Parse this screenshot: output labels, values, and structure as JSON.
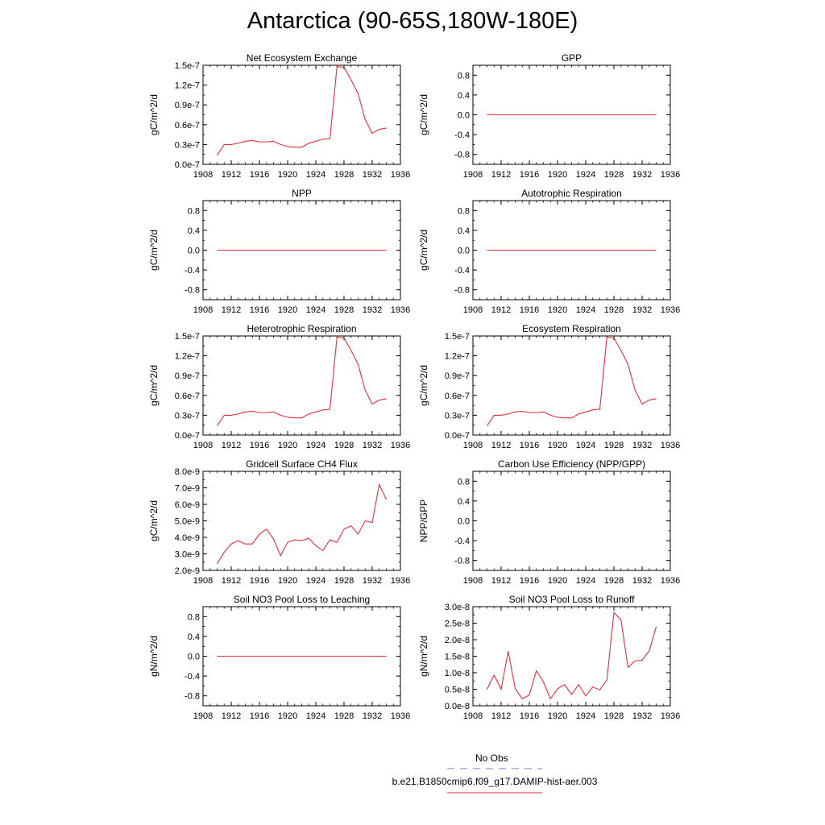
{
  "title": "Antarctica (90-65S,180W-180E)",
  "legend": {
    "obs_label": "No Obs",
    "obs_color": "#7b7bd6",
    "model_label": "b.e21.B1850cmip6.f09_g17.DAMIP-hist-aer.003",
    "model_color": "#e0303a"
  },
  "chart_data": [
    {
      "type": "line",
      "title": "Net Ecosystem Exchange",
      "ylabel": "gC/m^2/d",
      "xlim": [
        1908,
        1936
      ],
      "xticks": [
        1908,
        1912,
        1916,
        1920,
        1924,
        1928,
        1932,
        1936
      ],
      "ylim": [
        0.0,
        1.5e-07
      ],
      "yticks": [
        0.0,
        3e-08,
        6e-08,
        9e-08,
        1.2e-07,
        1.5e-07
      ],
      "ytick_labels": [
        "0.0e-7",
        "0.3e-7",
        "0.6e-7",
        "0.9e-7",
        "1.2e-7",
        "1.5e-7"
      ],
      "series": [
        {
          "x": [
            1910,
            1911,
            1912,
            1913,
            1914,
            1915,
            1916,
            1917,
            1918,
            1919,
            1920,
            1921,
            1922,
            1923,
            1924,
            1925,
            1926,
            1927,
            1928,
            1929,
            1930,
            1931,
            1932,
            1933,
            1934
          ],
          "y": [
            1.4e-08,
            3e-08,
            3e-08,
            3.2e-08,
            3.5e-08,
            3.6e-08,
            3.4e-08,
            3.4e-08,
            3.5e-08,
            3e-08,
            2.7e-08,
            2.6e-08,
            2.6e-08,
            3.2e-08,
            3.5e-08,
            3.8e-08,
            3.9e-08,
            1.48e-07,
            1.47e-07,
            1.28e-07,
            1.07e-07,
            6.8e-08,
            4.7e-08,
            5.3e-08,
            5.5e-08
          ]
        }
      ]
    },
    {
      "type": "line",
      "title": "GPP",
      "ylabel": "gC/m^2/d",
      "xlim": [
        1908,
        1936
      ],
      "xticks": [
        1908,
        1912,
        1916,
        1920,
        1924,
        1928,
        1932,
        1936
      ],
      "ylim": [
        -1.0,
        1.0
      ],
      "yticks": [
        -0.8,
        -0.4,
        0.0,
        0.4,
        0.8
      ],
      "ytick_labels": [
        "-0.8",
        "-0.4",
        "0.0",
        "0.4",
        "0.8"
      ],
      "series": [
        {
          "x": [
            1910,
            1934
          ],
          "y": [
            0,
            0
          ]
        }
      ]
    },
    {
      "type": "line",
      "title": "NPP",
      "ylabel": "gC/m^2/d",
      "xlim": [
        1908,
        1936
      ],
      "xticks": [
        1908,
        1912,
        1916,
        1920,
        1924,
        1928,
        1932,
        1936
      ],
      "ylim": [
        -1.0,
        1.0
      ],
      "yticks": [
        -0.8,
        -0.4,
        0.0,
        0.4,
        0.8
      ],
      "ytick_labels": [
        "-0.8",
        "-0.4",
        "0.0",
        "0.4",
        "0.8"
      ],
      "series": [
        {
          "x": [
            1910,
            1934
          ],
          "y": [
            0,
            0
          ]
        }
      ]
    },
    {
      "type": "line",
      "title": "Autotrophic Respiration",
      "ylabel": "gC/m^2/d",
      "xlim": [
        1908,
        1936
      ],
      "xticks": [
        1908,
        1912,
        1916,
        1920,
        1924,
        1928,
        1932,
        1936
      ],
      "ylim": [
        -1.0,
        1.0
      ],
      "yticks": [
        -0.8,
        -0.4,
        0.0,
        0.4,
        0.8
      ],
      "ytick_labels": [
        "-0.8",
        "-0.4",
        "0.0",
        "0.4",
        "0.8"
      ],
      "series": [
        {
          "x": [
            1910,
            1934
          ],
          "y": [
            0,
            0
          ]
        }
      ]
    },
    {
      "type": "line",
      "title": "Heterotrophic Respiration",
      "ylabel": "gC/m^2/d",
      "xlim": [
        1908,
        1936
      ],
      "xticks": [
        1908,
        1912,
        1916,
        1920,
        1924,
        1928,
        1932,
        1936
      ],
      "ylim": [
        0.0,
        1.5e-07
      ],
      "yticks": [
        0.0,
        3e-08,
        6e-08,
        9e-08,
        1.2e-07,
        1.5e-07
      ],
      "ytick_labels": [
        "0.0e-7",
        "0.3e-7",
        "0.6e-7",
        "0.9e-7",
        "1.2e-7",
        "1.5e-7"
      ],
      "series": [
        {
          "x": [
            1910,
            1911,
            1912,
            1913,
            1914,
            1915,
            1916,
            1917,
            1918,
            1919,
            1920,
            1921,
            1922,
            1923,
            1924,
            1925,
            1926,
            1927,
            1928,
            1929,
            1930,
            1931,
            1932,
            1933,
            1934
          ],
          "y": [
            1.4e-08,
            3e-08,
            3e-08,
            3.2e-08,
            3.5e-08,
            3.6e-08,
            3.4e-08,
            3.4e-08,
            3.5e-08,
            3e-08,
            2.7e-08,
            2.6e-08,
            2.6e-08,
            3.2e-08,
            3.5e-08,
            3.8e-08,
            3.9e-08,
            1.48e-07,
            1.47e-07,
            1.28e-07,
            1.07e-07,
            6.8e-08,
            4.7e-08,
            5.3e-08,
            5.5e-08
          ]
        }
      ]
    },
    {
      "type": "line",
      "title": "Ecosystem Respiration",
      "ylabel": "gC/m^2/d",
      "xlim": [
        1908,
        1936
      ],
      "xticks": [
        1908,
        1912,
        1916,
        1920,
        1924,
        1928,
        1932,
        1936
      ],
      "ylim": [
        0.0,
        1.5e-07
      ],
      "yticks": [
        0.0,
        3e-08,
        6e-08,
        9e-08,
        1.2e-07,
        1.5e-07
      ],
      "ytick_labels": [
        "0.0e-7",
        "0.3e-7",
        "0.6e-7",
        "0.9e-7",
        "1.2e-7",
        "1.5e-7"
      ],
      "series": [
        {
          "x": [
            1910,
            1911,
            1912,
            1913,
            1914,
            1915,
            1916,
            1917,
            1918,
            1919,
            1920,
            1921,
            1922,
            1923,
            1924,
            1925,
            1926,
            1927,
            1928,
            1929,
            1930,
            1931,
            1932,
            1933,
            1934
          ],
          "y": [
            1.4e-08,
            3e-08,
            3e-08,
            3.2e-08,
            3.5e-08,
            3.6e-08,
            3.4e-08,
            3.4e-08,
            3.5e-08,
            3e-08,
            2.7e-08,
            2.6e-08,
            2.6e-08,
            3.2e-08,
            3.5e-08,
            3.8e-08,
            3.9e-08,
            1.48e-07,
            1.47e-07,
            1.28e-07,
            1.07e-07,
            6.8e-08,
            4.7e-08,
            5.3e-08,
            5.5e-08
          ]
        }
      ]
    },
    {
      "type": "line",
      "title": "Gridcell Surface CH4 Flux",
      "ylabel": "gC/m^2/d",
      "xlim": [
        1908,
        1936
      ],
      "xticks": [
        1908,
        1912,
        1916,
        1920,
        1924,
        1928,
        1932,
        1936
      ],
      "ylim": [
        2e-09,
        8e-09
      ],
      "yticks": [
        2e-09,
        3e-09,
        4e-09,
        5e-09,
        6e-09,
        7e-09,
        8e-09
      ],
      "ytick_labels": [
        "2.0e-9",
        "3.0e-9",
        "4.0e-9",
        "5.0e-9",
        "6.0e-9",
        "7.0e-9",
        "8.0e-9"
      ],
      "series": [
        {
          "x": [
            1910,
            1911,
            1912,
            1913,
            1914,
            1915,
            1916,
            1917,
            1918,
            1919,
            1920,
            1921,
            1922,
            1923,
            1924,
            1925,
            1926,
            1927,
            1928,
            1929,
            1930,
            1931,
            1932,
            1933,
            1934
          ],
          "y": [
            2.4e-09,
            3.1e-09,
            3.6e-09,
            3.8e-09,
            3.6e-09,
            3.6e-09,
            4.2e-09,
            4.5e-09,
            3.9e-09,
            2.9e-09,
            3.7e-09,
            3.85e-09,
            3.8e-09,
            3.95e-09,
            3.5e-09,
            3.2e-09,
            3.85e-09,
            3.7e-09,
            4.5e-09,
            4.7e-09,
            4.2e-09,
            5e-09,
            4.9e-09,
            7.2e-09,
            6.3e-09
          ]
        }
      ]
    },
    {
      "type": "line",
      "title": "Carbon Use Efficiency (NPP/GPP)",
      "ylabel": "NPP/GPP",
      "xlim": [
        1908,
        1936
      ],
      "xticks": [
        1908,
        1912,
        1916,
        1920,
        1924,
        1928,
        1932,
        1936
      ],
      "ylim": [
        -1.0,
        1.0
      ],
      "yticks": [
        -0.8,
        -0.4,
        0.0,
        0.4,
        0.8
      ],
      "ytick_labels": [
        "-0.8",
        "-0.4",
        "0.0",
        "0.4",
        "0.8"
      ],
      "series": []
    },
    {
      "type": "line",
      "title": "Soil NO3 Pool Loss to Leaching",
      "ylabel": "gN/m^2/d",
      "xlim": [
        1908,
        1936
      ],
      "xticks": [
        1908,
        1912,
        1916,
        1920,
        1924,
        1928,
        1932,
        1936
      ],
      "ylim": [
        -1.0,
        1.0
      ],
      "yticks": [
        -0.8,
        -0.4,
        0.0,
        0.4,
        0.8
      ],
      "ytick_labels": [
        "-0.8",
        "-0.4",
        "0.0",
        "0.4",
        "0.8"
      ],
      "series": [
        {
          "x": [
            1910,
            1934
          ],
          "y": [
            0,
            0
          ]
        }
      ]
    },
    {
      "type": "line",
      "title": "Soil NO3 Pool Loss to Runoff",
      "ylabel": "gN/m^2/d",
      "xlim": [
        1908,
        1936
      ],
      "xticks": [
        1908,
        1912,
        1916,
        1920,
        1924,
        1928,
        1932,
        1936
      ],
      "ylim": [
        0.0,
        3e-08
      ],
      "yticks": [
        0.0,
        5e-09,
        1e-08,
        1.5e-08,
        2e-08,
        2.5e-08,
        3e-08
      ],
      "ytick_labels": [
        "0.0e-8",
        "0.5e-8",
        "1.0e-8",
        "1.5e-8",
        "2.0e-8",
        "2.5e-8",
        "3.0e-8"
      ],
      "series": [
        {
          "x": [
            1910,
            1911,
            1912,
            1913,
            1914,
            1915,
            1916,
            1917,
            1918,
            1919,
            1920,
            1921,
            1922,
            1923,
            1924,
            1925,
            1926,
            1927,
            1928,
            1929,
            1930,
            1931,
            1932,
            1933,
            1934
          ],
          "y": [
            5e-09,
            9.3e-09,
            5e-09,
            1.65e-08,
            5.2e-09,
            2.1e-09,
            3.3e-09,
            1.06e-08,
            7.2e-09,
            2.1e-09,
            5.1e-09,
            6.4e-09,
            3.4e-09,
            6.4e-09,
            3e-09,
            5.7e-09,
            4.8e-09,
            7.8e-09,
            2.82e-08,
            2.6e-08,
            1.16e-08,
            1.36e-08,
            1.38e-08,
            1.66e-08,
            2.4e-08
          ]
        }
      ]
    }
  ]
}
